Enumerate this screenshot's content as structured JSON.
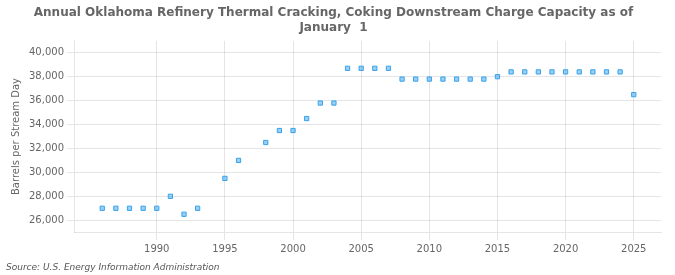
{
  "chart_data": {
    "type": "scatter",
    "title": "Annual Oklahoma Refinery Thermal Cracking, Coking Downstream Charge Capacity as of\nJanuary  1",
    "ylabel": "Barrels per Stream Day",
    "source": "Source: U.S. Energy Information Administration",
    "x": [
      1986,
      1987,
      1988,
      1989,
      1990,
      1991,
      1992,
      1993,
      1995,
      1996,
      1998,
      1999,
      2000,
      2001,
      2002,
      2003,
      2004,
      2005,
      2006,
      2007,
      2008,
      2009,
      2010,
      2011,
      2012,
      2013,
      2014,
      2015,
      2016,
      2017,
      2018,
      2019,
      2020,
      2021,
      2022,
      2023,
      2024,
      2025
    ],
    "values": [
      27000,
      27000,
      27000,
      27000,
      27000,
      28000,
      26500,
      27000,
      29500,
      31000,
      32500,
      33500,
      33500,
      34500,
      35800,
      35800,
      38700,
      38700,
      38700,
      38700,
      37800,
      37800,
      37800,
      37800,
      37800,
      37800,
      37800,
      38000,
      38400,
      38400,
      38400,
      38400,
      38400,
      38400,
      38400,
      38400,
      38400,
      36500
    ],
    "xlim": [
      1984,
      2027
    ],
    "ylim": [
      25000,
      41000
    ],
    "xticks": [
      1990,
      1995,
      2000,
      2005,
      2010,
      2015,
      2020,
      2025
    ],
    "yticks": [
      {
        "value": 26000,
        "label": "26,000"
      },
      {
        "value": 28000,
        "label": "28,000"
      },
      {
        "value": 30000,
        "label": "30,000"
      },
      {
        "value": 32000,
        "label": "32,000"
      },
      {
        "value": 34000,
        "label": "34,000"
      },
      {
        "value": 36000,
        "label": "36,000"
      },
      {
        "value": 38000,
        "label": "38,000"
      },
      {
        "value": 40000,
        "label": "40,000"
      }
    ],
    "marker": "square",
    "grid": true
  }
}
